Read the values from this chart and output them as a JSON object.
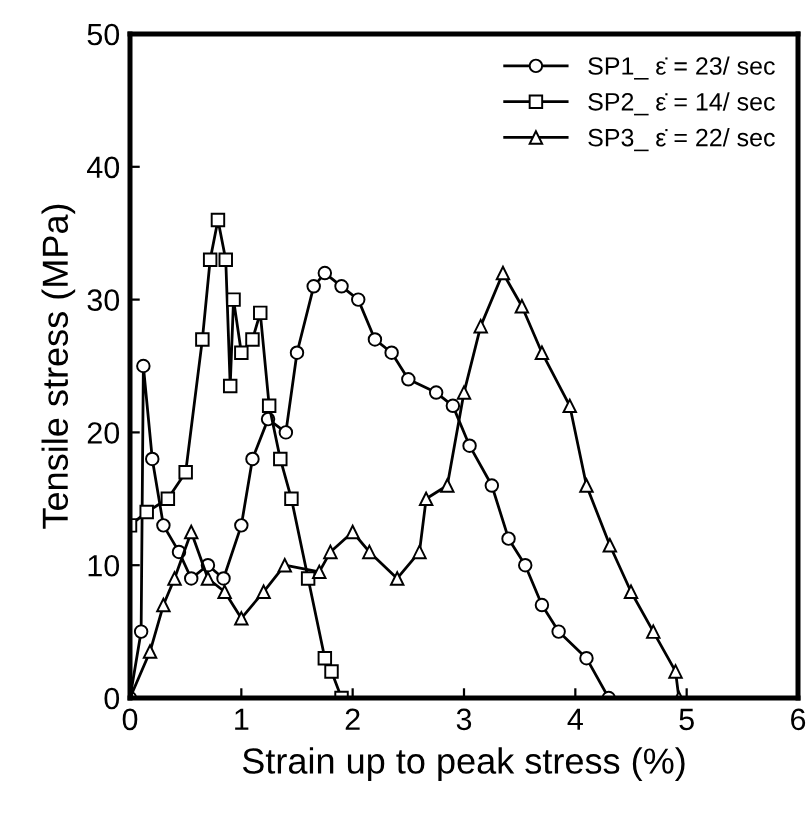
{
  "chart_data": {
    "type": "line",
    "xlabel": "Strain up to peak stress (%)",
    "ylabel": "Tensile stress (MPa)",
    "xlim": [
      0,
      6
    ],
    "ylim": [
      0,
      50
    ],
    "xticks": [
      0,
      1,
      2,
      3,
      4,
      5,
      6
    ],
    "yticks": [
      0,
      10,
      20,
      30,
      40,
      50
    ],
    "grid": false,
    "legend": "top right",
    "line_style": "solid",
    "series": [
      {
        "name": "SP1_ ε̇ = 23/ sec",
        "color": "#000000",
        "marker": "circle",
        "x": [
          0,
          0.1,
          0.12,
          0.2,
          0.3,
          0.44,
          0.55,
          0.7,
          0.84,
          1.0,
          1.1,
          1.24,
          1.4,
          1.5,
          1.65,
          1.75,
          1.9,
          2.05,
          2.2,
          2.35,
          2.5,
          2.75,
          2.9,
          3.05,
          3.25,
          3.4,
          3.55,
          3.7,
          3.85,
          4.1,
          4.3
        ],
        "values": [
          0,
          5,
          25,
          18,
          13,
          11,
          9,
          10,
          9,
          13,
          18,
          21,
          20,
          26,
          31,
          32,
          31,
          30,
          27,
          26,
          24,
          23,
          22,
          19,
          16,
          12,
          10,
          7,
          5,
          3,
          0
        ]
      },
      {
        "name": "SP2_ ε̇ = 14/ sec",
        "color": "#000000",
        "marker": "square",
        "x": [
          0,
          0.15,
          0.34,
          0.5,
          0.65,
          0.72,
          0.79,
          0.86,
          0.9,
          0.93,
          1.0,
          1.1,
          1.17,
          1.25,
          1.35,
          1.45,
          1.6,
          1.75,
          1.81,
          1.9
        ],
        "values": [
          13,
          14,
          15,
          17,
          27,
          33,
          36,
          33,
          23.5,
          30,
          26,
          27,
          29,
          22,
          18,
          15,
          9,
          3,
          2,
          0
        ]
      },
      {
        "name": "SP3_ ε̇ = 22/ sec",
        "color": "#000000",
        "marker": "triangle",
        "x": [
          0,
          0.18,
          0.3,
          0.4,
          0.55,
          0.7,
          0.85,
          1.0,
          1.2,
          1.39,
          1.7,
          1.8,
          2.0,
          2.15,
          2.4,
          2.6,
          2.66,
          2.85,
          3.0,
          3.15,
          3.35,
          3.52,
          3.7,
          3.95,
          4.1,
          4.31,
          4.5,
          4.7,
          4.9,
          4.93
        ],
        "values": [
          0,
          3.5,
          7,
          9,
          12.5,
          9,
          8,
          6,
          8,
          10,
          9.5,
          11,
          12.5,
          11,
          9,
          11,
          15,
          16,
          23,
          28,
          32,
          29.5,
          26,
          22,
          16,
          11.5,
          8,
          5,
          2,
          0
        ]
      }
    ]
  }
}
